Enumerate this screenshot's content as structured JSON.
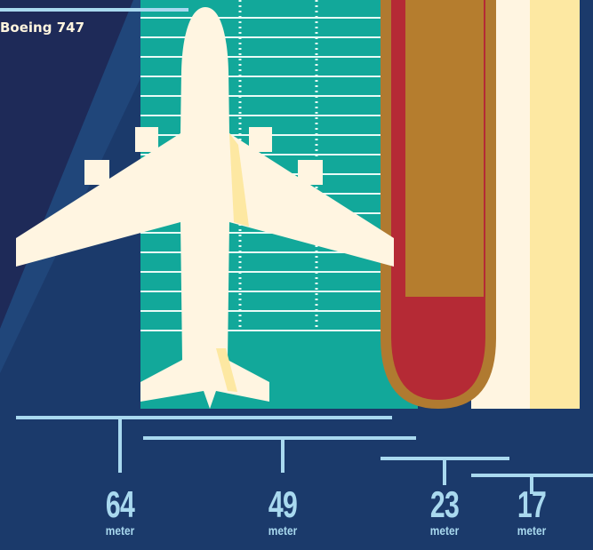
{
  "aircraft_label": "Boeing 747",
  "measurements": [
    {
      "value": "64",
      "unit": "meter"
    },
    {
      "value": "49",
      "unit": "meter"
    },
    {
      "value": "23",
      "unit": "meter"
    },
    {
      "value": "17",
      "unit": "meter"
    }
  ],
  "colors": {
    "background": "#1b3a6b",
    "dark_wedge": "#1e2a58",
    "field_green": "#12a89a",
    "plane": "#fff5e1",
    "plane_shade": "#fde8a2",
    "ship_hull": "#b52a35",
    "ship_rim": "#b07a30",
    "ship_deck": "#b57d2e",
    "tower": "#fff5e1",
    "tower_shade": "#fde8a2",
    "line": "#a9d9ef"
  }
}
